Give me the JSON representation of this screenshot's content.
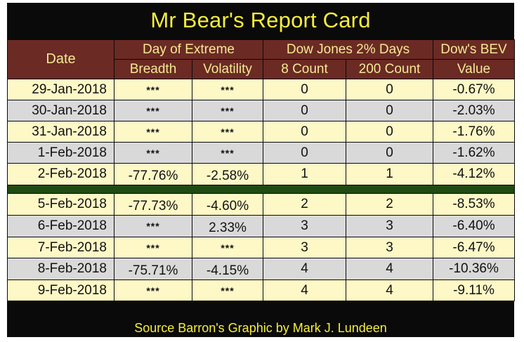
{
  "title": "Mr Bear's Report Card",
  "headers": {
    "date": "Date",
    "group1": "Day of Extreme",
    "group2": "Dow Jones 2% Days",
    "group3": "Dow's BEV",
    "breadth": "Breadth",
    "volatility": "Volatility",
    "count8": "8 Count",
    "count200": "200 Count",
    "value": "Value"
  },
  "rows_before": [
    {
      "date": "29-Jan-2018",
      "breadth": "***",
      "volatility": "***",
      "count8": "0",
      "count200": "0",
      "bev": "-0.67%",
      "shade": "cream"
    },
    {
      "date": "30-Jan-2018",
      "breadth": "***",
      "volatility": "***",
      "count8": "0",
      "count200": "0",
      "bev": "-2.03%",
      "shade": "grey"
    },
    {
      "date": "31-Jan-2018",
      "breadth": "***",
      "volatility": "***",
      "count8": "0",
      "count200": "0",
      "bev": "-1.76%",
      "shade": "cream"
    },
    {
      "date": "1-Feb-2018",
      "breadth": "***",
      "volatility": "***",
      "count8": "0",
      "count200": "0",
      "bev": "-1.62%",
      "shade": "grey"
    },
    {
      "date": "2-Feb-2018",
      "breadth": "-77.76%",
      "volatility": "-2.58%",
      "count8": "1",
      "count200": "1",
      "bev": "-4.12%",
      "shade": "cream"
    }
  ],
  "rows_after": [
    {
      "date": "5-Feb-2018",
      "breadth": "-77.73%",
      "volatility": "-4.60%",
      "count8": "2",
      "count200": "2",
      "bev": "-8.53%",
      "shade": "cream"
    },
    {
      "date": "6-Feb-2018",
      "breadth": "***",
      "volatility": "2.33%",
      "count8": "3",
      "count200": "3",
      "bev": "-6.40%",
      "shade": "grey"
    },
    {
      "date": "7-Feb-2018",
      "breadth": "***",
      "volatility": "***",
      "count8": "3",
      "count200": "3",
      "bev": "-6.47%",
      "shade": "cream"
    },
    {
      "date": "8-Feb-2018",
      "breadth": "-75.71%",
      "volatility": "-4.15%",
      "count8": "4",
      "count200": "4",
      "bev": "-10.36%",
      "shade": "grey"
    },
    {
      "date": "9-Feb-2018",
      "breadth": "***",
      "volatility": "***",
      "count8": "4",
      "count200": "4",
      "bev": "-9.11%",
      "shade": "cream"
    }
  ],
  "footer": "Source Barron's  Graphic by Mark J. Lundeen",
  "colors": {
    "title_text": "#f6ee3a",
    "header_bg": "#6b2a24",
    "header_text": "#f3ea94",
    "row_cream": "#fdf8c6",
    "row_grey": "#d9d9d9",
    "separator": "#1f4a13"
  }
}
